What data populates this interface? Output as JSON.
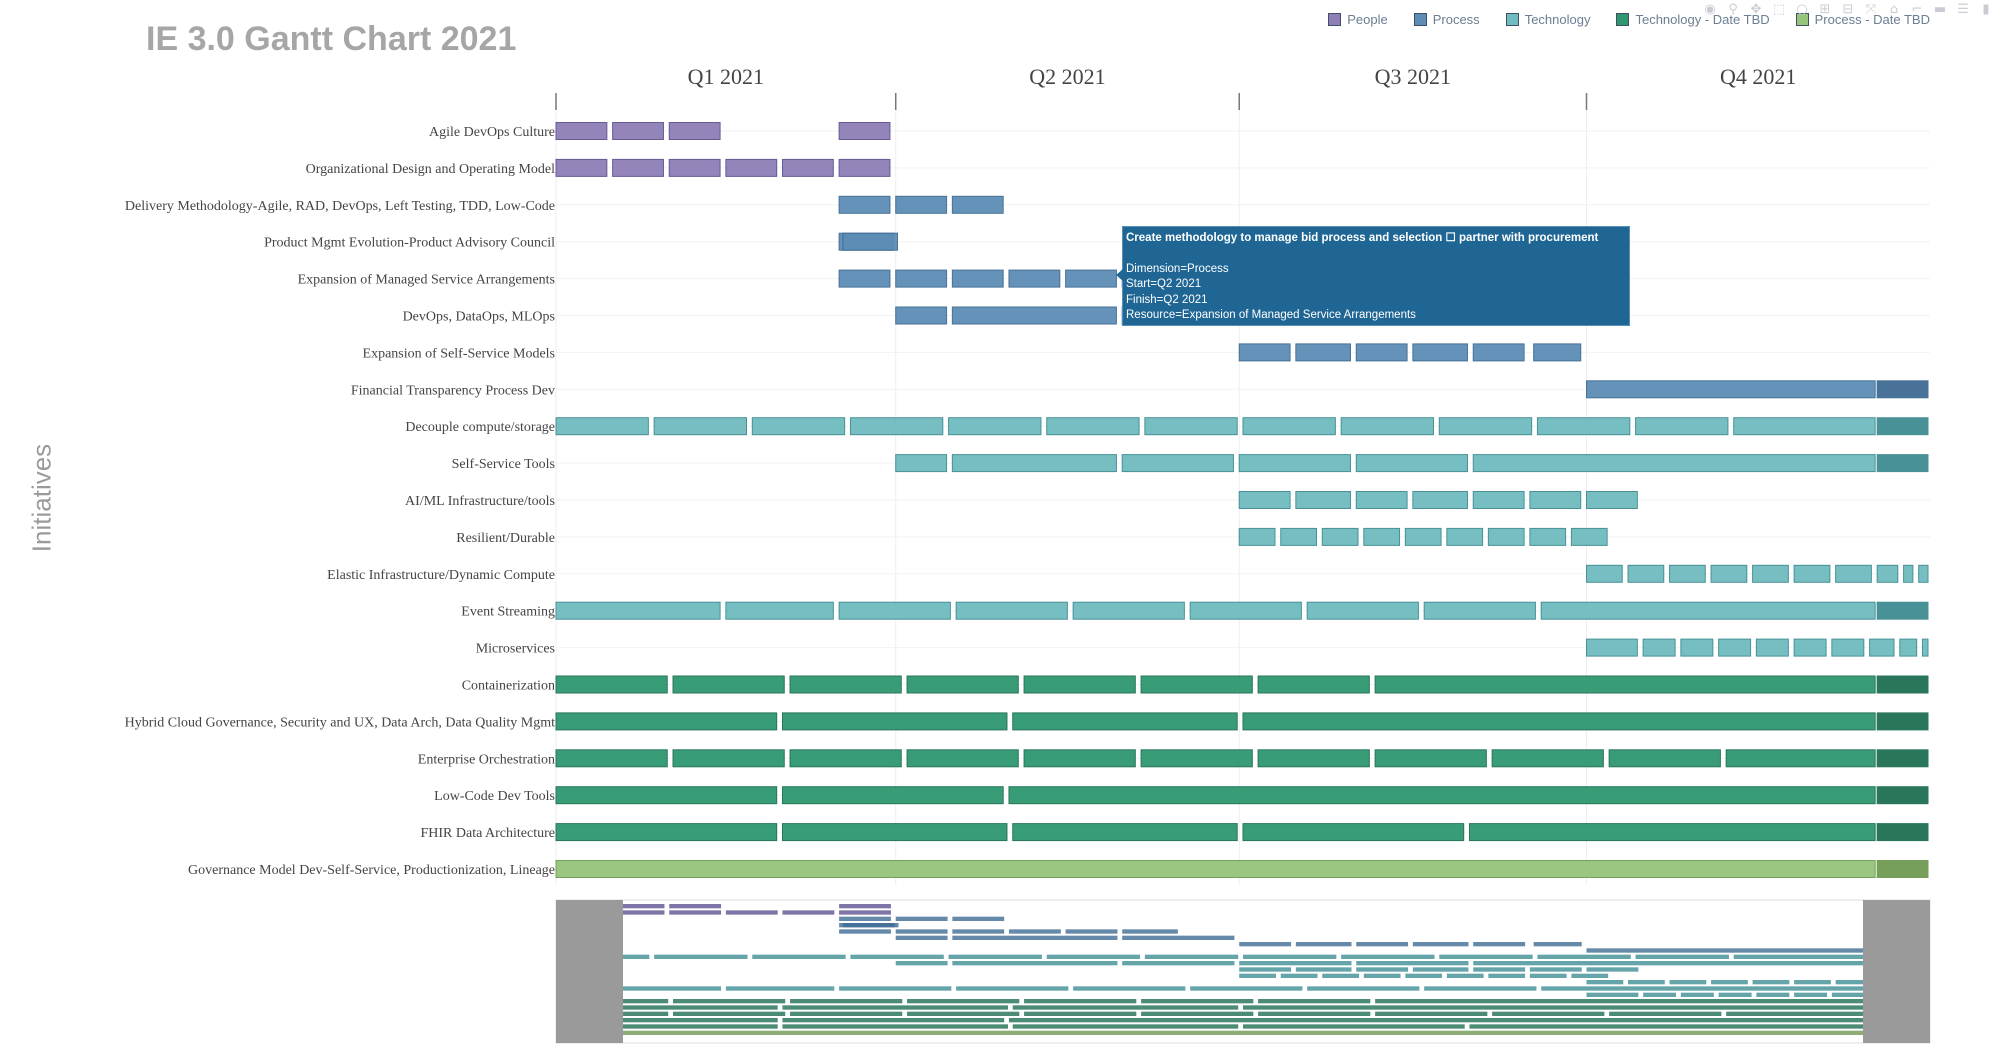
{
  "title": "IE 3.0 Gantt Chart 2021",
  "y_axis_title": "Initiatives",
  "legend": [
    {
      "label": "People",
      "color": "#8e7fb6"
    },
    {
      "label": "Process",
      "color": "#5d8db5"
    },
    {
      "label": "Technology",
      "color": "#6fbbbf"
    },
    {
      "label": "Technology - Date TBD",
      "color": "#2e9770"
    },
    {
      "label": "Process - Date TBD",
      "color": "#96c47a"
    }
  ],
  "modebar": [
    {
      "name": "camera-icon",
      "glyph": "◉"
    },
    {
      "name": "zoom-icon",
      "glyph": "⚲"
    },
    {
      "name": "pan-icon",
      "glyph": "✥"
    },
    {
      "name": "box-select-icon",
      "glyph": "⬚"
    },
    {
      "name": "lasso-icon",
      "glyph": "○"
    },
    {
      "name": "zoom-in-icon",
      "glyph": "⊞"
    },
    {
      "name": "zoom-out-icon",
      "glyph": "⊟"
    },
    {
      "name": "autoscale-icon",
      "glyph": "⤧"
    },
    {
      "name": "home-icon",
      "glyph": "⌂"
    },
    {
      "name": "spike-lines-icon",
      "glyph": "⌐"
    },
    {
      "name": "hover-closest-icon",
      "glyph": "▬"
    },
    {
      "name": "hover-compare-icon",
      "glyph": "☰"
    },
    {
      "name": "plotly-logo-icon",
      "glyph": "▮"
    }
  ],
  "tooltip": {
    "head": "Create methodology to manage bid process and selection ☐ partner with procurement",
    "lines": [
      "Dimension=Process",
      "Start=Q2 2021",
      "Finish=Q2 2021",
      "Resource=Expansion of Managed Service Arrangements"
    ]
  },
  "chart_data": {
    "type": "gantt",
    "title": "IE 3.0 Gantt Chart 2021",
    "ylabel": "Initiatives",
    "x_ticks": [
      "Q1 2021",
      "Q2 2021",
      "Q3 2021",
      "Q4 2021"
    ],
    "x_range": [
      "2021-01-01",
      "2021-12-31"
    ],
    "rows": [
      {
        "label": "Agile DevOps Culture",
        "category": "People",
        "segments": [
          [
            "2021-01-01",
            "2021-01-15"
          ],
          [
            "2021-01-16",
            "2021-01-30"
          ],
          [
            "2021-01-31",
            "2021-02-14"
          ],
          [
            "2021-03-17",
            "2021-03-31"
          ]
        ]
      },
      {
        "label": "Organizational Design and Operating Model",
        "category": "People",
        "segments": [
          [
            "2021-01-01",
            "2021-01-15"
          ],
          [
            "2021-01-16",
            "2021-01-30"
          ],
          [
            "2021-01-31",
            "2021-02-14"
          ],
          [
            "2021-02-15",
            "2021-03-01"
          ],
          [
            "2021-03-02",
            "2021-03-16"
          ],
          [
            "2021-03-17",
            "2021-03-31"
          ]
        ]
      },
      {
        "label": "Delivery Methodology-Agile, RAD, DevOps, Left Testing, TDD, Low-Code",
        "category": "Process",
        "segments": [
          [
            "2021-03-17",
            "2021-03-31"
          ],
          [
            "2021-04-01",
            "2021-04-15"
          ],
          [
            "2021-04-16",
            "2021-04-30"
          ]
        ]
      },
      {
        "label": "Product Mgmt Evolution-Product Advisory Council",
        "category": "Process",
        "segments": [
          [
            "2021-03-17",
            "2021-04-01"
          ],
          [
            "2021-03-18",
            "2021-04-02"
          ]
        ]
      },
      {
        "label": "Expansion of Managed Service Arrangements",
        "category": "Process",
        "segments": [
          [
            "2021-03-17",
            "2021-03-31"
          ],
          [
            "2021-04-01",
            "2021-04-15"
          ],
          [
            "2021-04-16",
            "2021-04-30"
          ],
          [
            "2021-05-01",
            "2021-05-15"
          ],
          [
            "2021-05-16",
            "2021-05-30"
          ],
          [
            "2021-05-31",
            "2021-06-15"
          ]
        ]
      },
      {
        "label": "DevOps, DataOps, MLOps",
        "category": "Process",
        "segments": [
          [
            "2021-04-01",
            "2021-04-15"
          ],
          [
            "2021-04-16",
            "2021-05-30"
          ],
          [
            "2021-05-31",
            "2021-06-30"
          ]
        ]
      },
      {
        "label": "Expansion of Self-Service Models",
        "category": "Process",
        "segments": [
          [
            "2021-07-01",
            "2021-07-15"
          ],
          [
            "2021-07-16",
            "2021-07-31"
          ],
          [
            "2021-08-01",
            "2021-08-15"
          ],
          [
            "2021-08-16",
            "2021-08-31"
          ],
          [
            "2021-09-01",
            "2021-09-15"
          ],
          [
            "2021-09-17",
            "2021-09-30"
          ]
        ]
      },
      {
        "label": "Financial Transparency Process Dev",
        "category": "Process",
        "segments": [
          [
            "2021-10-01",
            "2021-12-17"
          ],
          [
            "2021-12-17",
            "2021-12-31"
          ]
        ]
      },
      {
        "label": "Decouple compute/storage",
        "category": "Technology",
        "segments": [
          [
            "2021-01-01",
            "2021-01-26"
          ],
          [
            "2021-01-27",
            "2021-02-21"
          ],
          [
            "2021-02-22",
            "2021-03-19"
          ],
          [
            "2021-03-20",
            "2021-04-14"
          ],
          [
            "2021-04-15",
            "2021-05-10"
          ],
          [
            "2021-05-11",
            "2021-06-05"
          ],
          [
            "2021-06-06",
            "2021-07-01"
          ],
          [
            "2021-07-02",
            "2021-07-27"
          ],
          [
            "2021-07-28",
            "2021-08-22"
          ],
          [
            "2021-08-23",
            "2021-09-17"
          ],
          [
            "2021-09-18",
            "2021-10-13"
          ],
          [
            "2021-10-14",
            "2021-11-08"
          ],
          [
            "2021-11-09",
            "2021-12-17"
          ],
          [
            "2021-12-17",
            "2021-12-31"
          ]
        ]
      },
      {
        "label": "Self-Service Tools",
        "category": "Technology",
        "segments": [
          [
            "2021-04-01",
            "2021-04-15"
          ],
          [
            "2021-04-16",
            "2021-05-30"
          ],
          [
            "2021-05-31",
            "2021-06-30"
          ],
          [
            "2021-07-01",
            "2021-07-31"
          ],
          [
            "2021-08-01",
            "2021-08-31"
          ],
          [
            "2021-09-01",
            "2021-12-17"
          ],
          [
            "2021-12-17",
            "2021-12-31"
          ]
        ]
      },
      {
        "label": "AI/ML Infrastructure/tools",
        "category": "Technology",
        "segments": [
          [
            "2021-07-01",
            "2021-07-15"
          ],
          [
            "2021-07-16",
            "2021-07-31"
          ],
          [
            "2021-08-01",
            "2021-08-15"
          ],
          [
            "2021-08-16",
            "2021-08-31"
          ],
          [
            "2021-09-01",
            "2021-09-15"
          ],
          [
            "2021-09-16",
            "2021-09-30"
          ],
          [
            "2021-10-01",
            "2021-10-15"
          ]
        ]
      },
      {
        "label": "Resilient/Durable",
        "category": "Technology",
        "segments": [
          [
            "2021-07-01",
            "2021-07-11"
          ],
          [
            "2021-07-12",
            "2021-07-22"
          ],
          [
            "2021-07-23",
            "2021-08-02"
          ],
          [
            "2021-08-03",
            "2021-08-13"
          ],
          [
            "2021-08-14",
            "2021-08-24"
          ],
          [
            "2021-08-25",
            "2021-09-04"
          ],
          [
            "2021-09-05",
            "2021-09-15"
          ],
          [
            "2021-09-16",
            "2021-09-26"
          ],
          [
            "2021-09-27",
            "2021-10-07"
          ]
        ]
      },
      {
        "label": "Elastic Infrastructure/Dynamic Compute",
        "category": "Technology",
        "segments": [
          [
            "2021-10-01",
            "2021-10-11"
          ],
          [
            "2021-10-12",
            "2021-10-22"
          ],
          [
            "2021-10-23",
            "2021-11-02"
          ],
          [
            "2021-11-03",
            "2021-11-13"
          ],
          [
            "2021-11-14",
            "2021-11-24"
          ],
          [
            "2021-11-25",
            "2021-12-05"
          ],
          [
            "2021-12-06",
            "2021-12-16"
          ],
          [
            "2021-12-17",
            "2021-12-23"
          ],
          [
            "2021-12-24",
            "2021-12-27"
          ],
          [
            "2021-12-28",
            "2021-12-31"
          ]
        ]
      },
      {
        "label": "Event Streaming",
        "category": "Technology",
        "segments": [
          [
            "2021-01-01",
            "2021-02-14"
          ],
          [
            "2021-02-15",
            "2021-03-16"
          ],
          [
            "2021-03-17",
            "2021-04-16"
          ],
          [
            "2021-04-17",
            "2021-05-17"
          ],
          [
            "2021-05-18",
            "2021-06-17"
          ],
          [
            "2021-06-18",
            "2021-07-18"
          ],
          [
            "2021-07-19",
            "2021-08-18"
          ],
          [
            "2021-08-19",
            "2021-09-18"
          ],
          [
            "2021-09-19",
            "2021-12-17"
          ],
          [
            "2021-12-17",
            "2021-12-31"
          ]
        ]
      },
      {
        "label": "Microservices",
        "category": "Technology",
        "segments": [
          [
            "2021-10-01",
            "2021-10-15"
          ],
          [
            "2021-10-16",
            "2021-10-25"
          ],
          [
            "2021-10-26",
            "2021-11-04"
          ],
          [
            "2021-11-05",
            "2021-11-14"
          ],
          [
            "2021-11-15",
            "2021-11-24"
          ],
          [
            "2021-11-25",
            "2021-12-04"
          ],
          [
            "2021-12-05",
            "2021-12-14"
          ],
          [
            "2021-12-15",
            "2021-12-22"
          ],
          [
            "2021-12-23",
            "2021-12-28"
          ],
          [
            "2021-12-29",
            "2021-12-31"
          ]
        ]
      },
      {
        "label": "Containerization",
        "category": "Technology - Date TBD",
        "segments": [
          [
            "2021-01-01",
            "2021-01-31"
          ],
          [
            "2021-02-01",
            "2021-03-03"
          ],
          [
            "2021-03-04",
            "2021-04-03"
          ],
          [
            "2021-04-04",
            "2021-05-04"
          ],
          [
            "2021-05-05",
            "2021-06-04"
          ],
          [
            "2021-06-05",
            "2021-07-05"
          ],
          [
            "2021-07-06",
            "2021-08-05"
          ],
          [
            "2021-08-06",
            "2021-12-17"
          ],
          [
            "2021-12-17",
            "2021-12-31"
          ]
        ]
      },
      {
        "label": "Hybrid Cloud Governance, Security and UX, Data Arch, Data Quality Mgmt",
        "category": "Technology - Date TBD",
        "segments": [
          [
            "2021-01-01",
            "2021-03-01"
          ],
          [
            "2021-03-02",
            "2021-05-01"
          ],
          [
            "2021-05-02",
            "2021-07-01"
          ],
          [
            "2021-07-02",
            "2021-12-17"
          ],
          [
            "2021-12-17",
            "2021-12-31"
          ]
        ]
      },
      {
        "label": "Enterprise Orchestration",
        "category": "Technology - Date TBD",
        "segments": [
          [
            "2021-01-01",
            "2021-01-31"
          ],
          [
            "2021-02-01",
            "2021-03-03"
          ],
          [
            "2021-03-04",
            "2021-04-03"
          ],
          [
            "2021-04-04",
            "2021-05-04"
          ],
          [
            "2021-05-05",
            "2021-06-04"
          ],
          [
            "2021-06-05",
            "2021-07-05"
          ],
          [
            "2021-07-06",
            "2021-08-05"
          ],
          [
            "2021-08-06",
            "2021-09-05"
          ],
          [
            "2021-09-06",
            "2021-10-06"
          ],
          [
            "2021-10-07",
            "2021-11-06"
          ],
          [
            "2021-11-07",
            "2021-12-17"
          ],
          [
            "2021-12-17",
            "2021-12-31"
          ]
        ]
      },
      {
        "label": "Low-Code Dev Tools",
        "category": "Technology - Date TBD",
        "segments": [
          [
            "2021-01-01",
            "2021-03-01"
          ],
          [
            "2021-03-02",
            "2021-04-30"
          ],
          [
            "2021-05-01",
            "2021-12-17"
          ],
          [
            "2021-12-17",
            "2021-12-31"
          ]
        ]
      },
      {
        "label": "FHIR Data Architecture",
        "category": "Technology - Date TBD",
        "segments": [
          [
            "2021-01-01",
            "2021-03-01"
          ],
          [
            "2021-03-02",
            "2021-05-01"
          ],
          [
            "2021-05-02",
            "2021-07-01"
          ],
          [
            "2021-07-02",
            "2021-08-30"
          ],
          [
            "2021-08-31",
            "2021-12-17"
          ],
          [
            "2021-12-17",
            "2021-12-31"
          ]
        ]
      },
      {
        "label": "Governance Model Dev-Self-Service, Productionization, Lineage",
        "category": "Process - Date TBD",
        "segments": [
          [
            "2021-01-01",
            "2021-12-17"
          ],
          [
            "2021-12-17",
            "2021-12-31"
          ]
        ]
      }
    ],
    "grid": true,
    "legend_position": "top-right",
    "range_slider": true
  }
}
